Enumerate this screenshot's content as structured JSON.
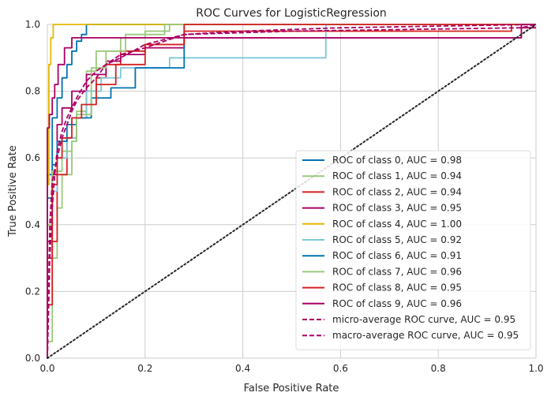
{
  "chart_data": {
    "type": "line",
    "title": "ROC Curves for LogisticRegression",
    "xlabel": "False Positive Rate",
    "ylabel": "True Positive Rate",
    "xlim": [
      0,
      1
    ],
    "ylim": [
      0,
      1
    ],
    "xticks": [
      "0.0",
      "0.2",
      "0.4",
      "0.6",
      "0.8",
      "1.0"
    ],
    "yticks": [
      "0.0",
      "0.2",
      "0.4",
      "0.6",
      "0.8",
      "1.0"
    ],
    "grid": true,
    "legend_position": "lower-right",
    "series": [
      {
        "name": "ROC of class 0, AUC = 0.98",
        "color": "#0072b2",
        "dash": "solid",
        "x": [
          0,
          0,
          0.01,
          0.01,
          0.02,
          0.02,
          0.03,
          0.03,
          0.04,
          0.04,
          0.05,
          0.05,
          0.06,
          0.06,
          0.07,
          0.07,
          0.08,
          0.08,
          1
        ],
        "y": [
          0,
          0.55,
          0.55,
          0.72,
          0.72,
          0.78,
          0.78,
          0.84,
          0.84,
          0.88,
          0.88,
          0.92,
          0.92,
          0.95,
          0.95,
          0.97,
          0.97,
          1.0,
          1.0
        ]
      },
      {
        "name": "ROC of class 1, AUC = 0.94",
        "color": "#9bc97b",
        "dash": "solid",
        "x": [
          0,
          0,
          0.01,
          0.01,
          0.02,
          0.02,
          0.03,
          0.03,
          0.05,
          0.05,
          0.06,
          0.06,
          0.08,
          0.08,
          0.1,
          0.1,
          0.15,
          0.15,
          0.2,
          0.2,
          0.25,
          0.25,
          1
        ],
        "y": [
          0,
          0.05,
          0.05,
          0.3,
          0.3,
          0.45,
          0.45,
          0.55,
          0.55,
          0.65,
          0.65,
          0.74,
          0.74,
          0.86,
          0.86,
          0.92,
          0.92,
          0.96,
          0.96,
          0.98,
          0.98,
          1.0,
          1.0
        ]
      },
      {
        "name": "ROC of class 2, AUC = 0.94",
        "color": "#d62020",
        "dash": "solid",
        "x": [
          0,
          0,
          0.01,
          0.01,
          0.02,
          0.02,
          0.04,
          0.04,
          0.06,
          0.06,
          0.08,
          0.08,
          0.1,
          0.1,
          0.12,
          0.12,
          0.15,
          0.15,
          0.2,
          0.2,
          0.28,
          0.28,
          0.95,
          0.95,
          1
        ],
        "y": [
          0,
          0.16,
          0.16,
          0.35,
          0.35,
          0.55,
          0.55,
          0.66,
          0.66,
          0.72,
          0.72,
          0.8,
          0.8,
          0.84,
          0.84,
          0.88,
          0.88,
          0.92,
          0.92,
          0.94,
          0.94,
          0.98,
          0.98,
          1.0,
          1.0
        ]
      },
      {
        "name": "ROC of class 3, AUC = 0.95",
        "color": "#aa0064",
        "dash": "solid",
        "x": [
          0,
          0,
          0.01,
          0.01,
          0.02,
          0.02,
          0.03,
          0.03,
          0.05,
          0.05,
          0.08,
          0.08,
          0.12,
          0.12,
          0.15,
          0.15,
          0.2,
          0.2,
          0.28,
          0.28,
          0.97,
          0.97,
          1
        ],
        "y": [
          0,
          0.35,
          0.35,
          0.55,
          0.55,
          0.7,
          0.7,
          0.75,
          0.75,
          0.8,
          0.8,
          0.85,
          0.85,
          0.89,
          0.89,
          0.91,
          0.91,
          0.93,
          0.93,
          0.96,
          0.96,
          0.99,
          0.99
        ]
      },
      {
        "name": "ROC of class 4, AUC = 1.00",
        "color": "#e3b800",
        "dash": "solid",
        "x": [
          0,
          0,
          0.003,
          0.003,
          0.007,
          0.007,
          0.012,
          0.012,
          1
        ],
        "y": [
          0,
          0.52,
          0.52,
          0.88,
          0.88,
          0.96,
          0.96,
          1.0,
          1.0
        ]
      },
      {
        "name": "ROC of class 5, AUC = 0.92",
        "color": "#7ec8d8",
        "dash": "solid",
        "x": [
          0,
          0,
          0.01,
          0.01,
          0.02,
          0.02,
          0.04,
          0.04,
          0.06,
          0.06,
          0.08,
          0.08,
          0.11,
          0.11,
          0.15,
          0.15,
          0.25,
          0.25,
          0.57,
          0.57,
          1
        ],
        "y": [
          0,
          0.3,
          0.3,
          0.5,
          0.5,
          0.6,
          0.6,
          0.66,
          0.66,
          0.72,
          0.72,
          0.8,
          0.8,
          0.84,
          0.84,
          0.87,
          0.87,
          0.9,
          0.9,
          1.0,
          1.0
        ]
      },
      {
        "name": "ROC of class 6, AUC = 0.91",
        "color": "#0072b2",
        "dash": "solid",
        "x": [
          0,
          0,
          0.01,
          0.01,
          0.02,
          0.02,
          0.04,
          0.04,
          0.06,
          0.06,
          0.09,
          0.09,
          0.13,
          0.13,
          0.18,
          0.18,
          0.28,
          0.28,
          1
        ],
        "y": [
          0,
          0.48,
          0.48,
          0.58,
          0.58,
          0.65,
          0.65,
          0.7,
          0.7,
          0.72,
          0.72,
          0.78,
          0.78,
          0.81,
          0.81,
          0.87,
          0.87,
          1.0,
          1.0
        ]
      },
      {
        "name": "ROC of class 7, AUC = 0.96",
        "color": "#9bc97b",
        "dash": "solid",
        "x": [
          0,
          0,
          0.01,
          0.01,
          0.03,
          0.03,
          0.05,
          0.05,
          0.06,
          0.06,
          0.09,
          0.09,
          0.12,
          0.12,
          0.16,
          0.16,
          0.24,
          0.24,
          1
        ],
        "y": [
          0,
          0.4,
          0.4,
          0.56,
          0.56,
          0.62,
          0.62,
          0.65,
          0.65,
          0.73,
          0.73,
          0.87,
          0.87,
          0.92,
          0.92,
          0.97,
          0.97,
          1.0,
          1.0
        ]
      },
      {
        "name": "ROC of class 8, AUC = 0.95",
        "color": "#d62020",
        "dash": "solid",
        "x": [
          0,
          0,
          0.01,
          0.01,
          0.02,
          0.02,
          0.03,
          0.03,
          0.05,
          0.05,
          0.07,
          0.07,
          0.1,
          0.1,
          0.14,
          0.14,
          0.2,
          0.2,
          0.28,
          0.28,
          1
        ],
        "y": [
          0,
          0.3,
          0.3,
          0.52,
          0.52,
          0.6,
          0.6,
          0.66,
          0.66,
          0.72,
          0.72,
          0.76,
          0.76,
          0.82,
          0.82,
          0.88,
          0.88,
          0.94,
          0.94,
          1.0,
          1.0
        ]
      },
      {
        "name": "ROC of class 9, AUC = 0.96",
        "color": "#aa0064",
        "dash": "solid",
        "x": [
          0,
          0,
          0.004,
          0.004,
          0.01,
          0.01,
          0.015,
          0.015,
          0.022,
          0.022,
          0.035,
          0.035,
          0.05,
          0.05,
          0.97,
          0.97,
          1
        ],
        "y": [
          0,
          0.69,
          0.69,
          0.73,
          0.73,
          0.78,
          0.78,
          0.82,
          0.82,
          0.88,
          0.88,
          0.93,
          0.93,
          0.96,
          0.96,
          1.0,
          1.0
        ]
      },
      {
        "name": "micro-average ROC curve, AUC = 0.95",
        "color": "#aa0064",
        "dash": "dashed",
        "x": [
          0,
          0.005,
          0.01,
          0.015,
          0.02,
          0.03,
          0.04,
          0.05,
          0.06,
          0.08,
          0.1,
          0.12,
          0.15,
          0.2,
          0.28,
          0.4,
          0.6,
          0.8,
          1
        ],
        "y": [
          0,
          0.3,
          0.45,
          0.55,
          0.62,
          0.68,
          0.72,
          0.75,
          0.78,
          0.83,
          0.86,
          0.88,
          0.9,
          0.94,
          0.97,
          0.98,
          0.99,
          0.995,
          1
        ]
      },
      {
        "name": "macro-average ROC curve, AUC = 0.95",
        "color": "#aa0064",
        "dash": "dashed",
        "x": [
          0,
          0.005,
          0.01,
          0.02,
          0.03,
          0.04,
          0.05,
          0.06,
          0.08,
          0.1,
          0.12,
          0.15,
          0.2,
          0.28,
          0.5,
          0.97,
          1
        ],
        "y": [
          0,
          0.4,
          0.53,
          0.6,
          0.66,
          0.7,
          0.74,
          0.77,
          0.81,
          0.84,
          0.88,
          0.91,
          0.93,
          0.97,
          0.98,
          0.99,
          1
        ]
      },
      {
        "name": "",
        "color": "#262626",
        "dash": "dotted",
        "x": [
          0,
          1
        ],
        "y": [
          0,
          1
        ]
      }
    ]
  }
}
